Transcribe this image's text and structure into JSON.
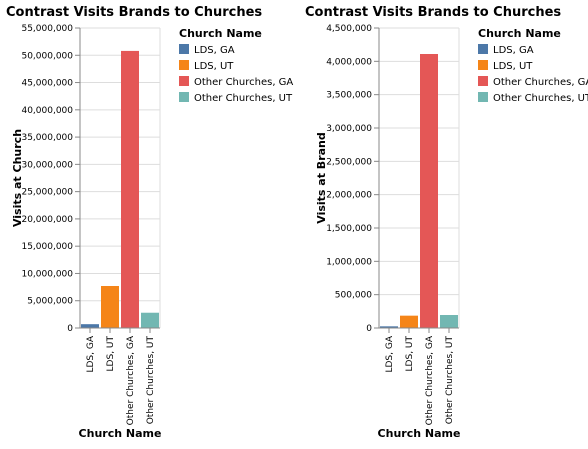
{
  "chart_data": [
    {
      "type": "bar",
      "title": "Contrast Visits Brands to Churches",
      "xlabel": "Church Name",
      "ylabel": "Visits at Church",
      "categories": [
        "LDS, GA",
        "LDS, UT",
        "Other Churches, GA",
        "Other Churches, UT"
      ],
      "values": [
        700000,
        7700000,
        50800000,
        2800000
      ],
      "colors": [
        "#4c78a8",
        "#f58518",
        "#e45756",
        "#72b7b2"
      ],
      "ylim": [
        0,
        55000000
      ],
      "yticks": [
        0,
        5000000,
        10000000,
        15000000,
        20000000,
        25000000,
        30000000,
        35000000,
        40000000,
        45000000,
        50000000,
        55000000
      ],
      "ytick_labels": [
        "0",
        "5,000,000",
        "10,000,000",
        "15,000,000",
        "20,000,000",
        "25,000,000",
        "30,000,000",
        "35,000,000",
        "40,000,000",
        "45,000,000",
        "50,000,000",
        "55,000,000"
      ],
      "grid": true,
      "legend": {
        "title": "Church Name",
        "placement": "right",
        "entries": [
          "LDS, GA",
          "LDS, UT",
          "Other Churches, GA",
          "Other Churches, UT"
        ]
      }
    },
    {
      "type": "bar",
      "title": "Contrast Visits Brands to Churches",
      "xlabel": "Church Name",
      "ylabel": "Visits at Brand",
      "categories": [
        "LDS, GA",
        "LDS, UT",
        "Other Churches, GA",
        "Other Churches, UT"
      ],
      "values": [
        25000,
        185000,
        4110000,
        195000
      ],
      "colors": [
        "#4c78a8",
        "#f58518",
        "#e45756",
        "#72b7b2"
      ],
      "ylim": [
        0,
        4500000
      ],
      "yticks": [
        0,
        500000,
        1000000,
        1500000,
        2000000,
        2500000,
        3000000,
        3500000,
        4000000,
        4500000
      ],
      "ytick_labels": [
        "0",
        "500,000",
        "1,000,000",
        "1,500,000",
        "2,000,000",
        "2,500,000",
        "3,000,000",
        "3,500,000",
        "4,000,000",
        "4,500,000"
      ],
      "grid": true,
      "legend": {
        "title": "Church Name",
        "placement": "right",
        "entries": [
          "LDS, GA",
          "LDS, UT",
          "Other Churches, GA",
          "Other Churches, UT"
        ]
      }
    }
  ]
}
